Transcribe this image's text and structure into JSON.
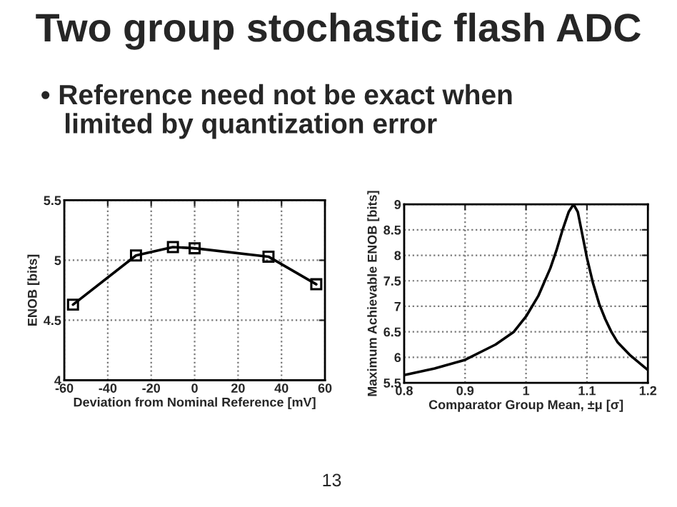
{
  "chart_data": [
    {
      "type": "line",
      "title": "Two group stochastic flash ADC",
      "subtitle": "• Reference need not be exact when\n   limited by quantization error",
      "annotations": [
        "13"
      ],
      "xlabel": "Deviation from Nominal Reference [mV]",
      "ylabel": "ENOB [bits]",
      "x": [
        -56,
        -27,
        -10,
        0,
        34,
        56
      ],
      "series": [
        {
          "color": "#000000",
          "values": [
            4.63,
            5.04,
            5.11,
            5.1,
            5.03,
            4.8
          ]
        }
      ],
      "xlim": [
        -60,
        60
      ],
      "xticks": [
        -60,
        -40,
        -20,
        0,
        20,
        40,
        60
      ],
      "ylim": [
        4,
        5.5
      ],
      "yticks": [
        4,
        4.5,
        5,
        5.5
      ],
      "grid": true,
      "marker": "square",
      "line_style": "solid"
    },
    {
      "type": "line",
      "xlabel": "Comparator Group Mean, ±μ [σ]",
      "ylabel": "Maximum Achievable ENOB [bits]",
      "x": [
        0.8,
        0.85,
        0.9,
        0.95,
        0.98,
        1.0,
        1.02,
        1.04,
        1.05,
        1.06,
        1.07,
        1.078,
        1.085,
        1.09,
        1.1,
        1.11,
        1.12,
        1.13,
        1.14,
        1.15,
        1.17,
        1.19,
        1.2
      ],
      "series": [
        {
          "color": "#000000",
          "values": [
            5.65,
            5.78,
            5.95,
            6.25,
            6.5,
            6.8,
            7.2,
            7.75,
            8.1,
            8.5,
            8.85,
            9.0,
            8.85,
            8.55,
            7.95,
            7.45,
            7.05,
            6.75,
            6.5,
            6.3,
            6.05,
            5.85,
            5.75
          ]
        }
      ],
      "xlim": [
        0.8,
        1.2
      ],
      "xticks": [
        0.8,
        0.9,
        1,
        1.1,
        1.2
      ],
      "ylim": [
        5.5,
        9
      ],
      "yticks": [
        5.5,
        6,
        6.5,
        7,
        7.5,
        8,
        8.5,
        9
      ],
      "grid": true,
      "marker": "none",
      "line_style": "solid"
    }
  ]
}
